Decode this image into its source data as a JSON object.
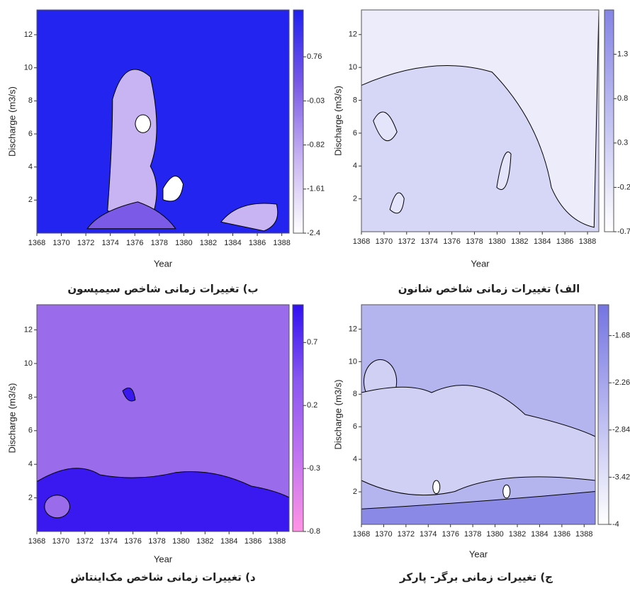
{
  "chart_data": [
    {
      "type": "contour",
      "caption": "ب) تغییرات زمانی شاخص سیمپسون",
      "x_label": "Year",
      "y_label": "Discharge (m3/s)",
      "xlim": [
        1368,
        1388.6
      ],
      "xticks": [
        1368,
        1370,
        1372,
        1374,
        1376,
        1378,
        1380,
        1382,
        1384,
        1386,
        1388
      ],
      "ylim": [
        0,
        13.5
      ],
      "yticks": [
        2,
        4,
        6,
        8,
        10,
        12
      ],
      "fill": "#2424f0",
      "clim": [
        -2.4,
        1.6
      ],
      "cticks": [
        0.76,
        -0.03,
        -0.82,
        -1.61,
        -2.4
      ],
      "colors": [
        "#ffffff",
        "#c8b4f2",
        "#7a5ae6",
        "#2020f0"
      ]
    },
    {
      "type": "contour",
      "caption": "الف) تغییرات زمانی شاخص شانون",
      "x_label": "Year",
      "y_label": "Discharge (m3/s)",
      "xlim": [
        1368,
        1389
      ],
      "xticks": [
        1368,
        1370,
        1372,
        1374,
        1376,
        1378,
        1380,
        1382,
        1384,
        1386,
        1388
      ],
      "ylim": [
        0,
        13.5
      ],
      "yticks": [
        2,
        4,
        6,
        8,
        10,
        12
      ],
      "fill": "#d6d6f6",
      "clim": [
        -0.7,
        1.8
      ],
      "cticks": [
        1.3,
        0.8,
        0.3,
        -0.2,
        -0.7
      ],
      "colors": [
        "#ffffff",
        "#8484e4"
      ]
    },
    {
      "type": "contour",
      "caption": "د) تغییرات زمانی شاخص مک‌اینتاش",
      "x_label": "Year",
      "y_label": "Discharge (m3/s)",
      "xlim": [
        1368,
        1389
      ],
      "xticks": [
        1368,
        1370,
        1372,
        1374,
        1376,
        1378,
        1380,
        1382,
        1384,
        1386,
        1388
      ],
      "ylim": [
        0,
        13.5
      ],
      "yticks": [
        2,
        4,
        6,
        8,
        10,
        12
      ],
      "fill": "#9a6cec",
      "clim": [
        -0.8,
        1.0
      ],
      "cticks": [
        0.7,
        0.2,
        -0.3,
        -0.8
      ],
      "colors": [
        "#ff94e4",
        "#c074f0",
        "#8a58f0",
        "#3010f0"
      ]
    },
    {
      "type": "contour",
      "caption": "ج) تغییرات زمانی برگر- پارکر",
      "x_label": "Year",
      "y_label": "Discharge (m3/s)",
      "xlim": [
        1368,
        1389
      ],
      "xticks": [
        1368,
        1370,
        1372,
        1374,
        1376,
        1378,
        1380,
        1382,
        1384,
        1386,
        1388
      ],
      "ylim": [
        0,
        13.5
      ],
      "yticks": [
        2,
        4,
        6,
        8,
        10,
        12
      ],
      "fill": "#b4b4ee",
      "clim": [
        -4,
        -1.3
      ],
      "cticks": [
        -1.68,
        -2.26,
        -2.84,
        -3.42,
        -4
      ],
      "colors": [
        "#ffffff",
        "#7474e2"
      ]
    }
  ]
}
